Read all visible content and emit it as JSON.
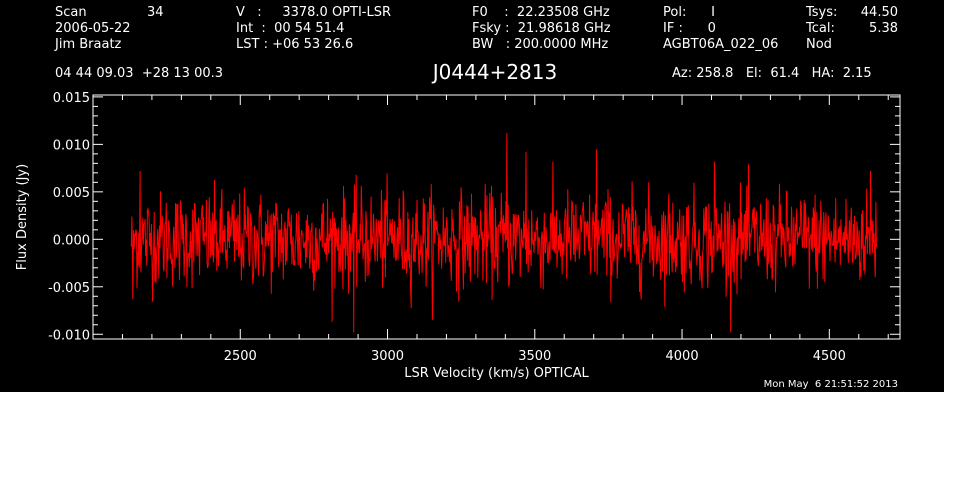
{
  "header": {
    "col1": [
      "Scan",
      "2006-05-22",
      "Jim Braatz"
    ],
    "scan_number": "34",
    "col2": [
      "V   :     3378.0 OPTI-LSR",
      "Int  :  00 54 51.4",
      "LST : +06 53 26.6"
    ],
    "col3": [
      "F0    :  22.23508 GHz",
      "Fsky :  21.98618 GHz",
      "BW   : 200.0000 MHz"
    ],
    "col4": [
      "Pol:      I",
      "IF :      0",
      "AGBT06A_022_06"
    ],
    "col5_labels": [
      "Tsys:",
      "Tcal:",
      "Nod"
    ],
    "col5_values": [
      "44.50",
      "5.38",
      ""
    ],
    "coordinates": "04 44 09.03  +28 13 00.3",
    "source": "J0444+2813",
    "pointing": "Az: 258.8   El:  61.4   HA:  2.15",
    "timestamp": "Mon May  6 21:51:52 2013"
  },
  "colors": {
    "background": "#000000",
    "axes": "#ffffff",
    "trace": "#ff0000"
  },
  "chart_data": {
    "type": "line",
    "title": "J0444+2813",
    "xlabel": "LSR Velocity (km/s) OPTICAL",
    "ylabel": "Flux Density (Jy)",
    "xlim": [
      2000,
      4740
    ],
    "ylim": [
      -0.0105,
      0.0152
    ],
    "xticks": [
      2500,
      3000,
      3500,
      4000,
      4500
    ],
    "xtick_labels": [
      "2500",
      "3000",
      "3500",
      "4000",
      "4500"
    ],
    "yticks": [
      -0.01,
      -0.005,
      0.0,
      0.005,
      0.01,
      0.015
    ],
    "ytick_labels": [
      "-0.010",
      "-0.005",
      "0.000",
      "0.005",
      "0.010",
      "0.015"
    ],
    "grid": false,
    "series": [
      {
        "x_range": [
          2130,
          4660
        ],
        "noise_rms": 0.0025,
        "mean": 0.0,
        "min": -0.0098,
        "max": 0.0112,
        "peak_x": 3405,
        "note_points": [
          {
            "x": 2135,
            "y": -0.0063
          },
          {
            "x": 2160,
            "y": 0.0072
          },
          {
            "x": 2885,
            "y": -0.0098
          },
          {
            "x": 3405,
            "y": 0.0112
          },
          {
            "x": 3470,
            "y": 0.0092
          },
          {
            "x": 3710,
            "y": 0.0095
          },
          {
            "x": 4110,
            "y": 0.0082
          },
          {
            "x": 4640,
            "y": 0.0072
          },
          {
            "x": 4655,
            "y": -0.0032
          }
        ]
      }
    ]
  }
}
